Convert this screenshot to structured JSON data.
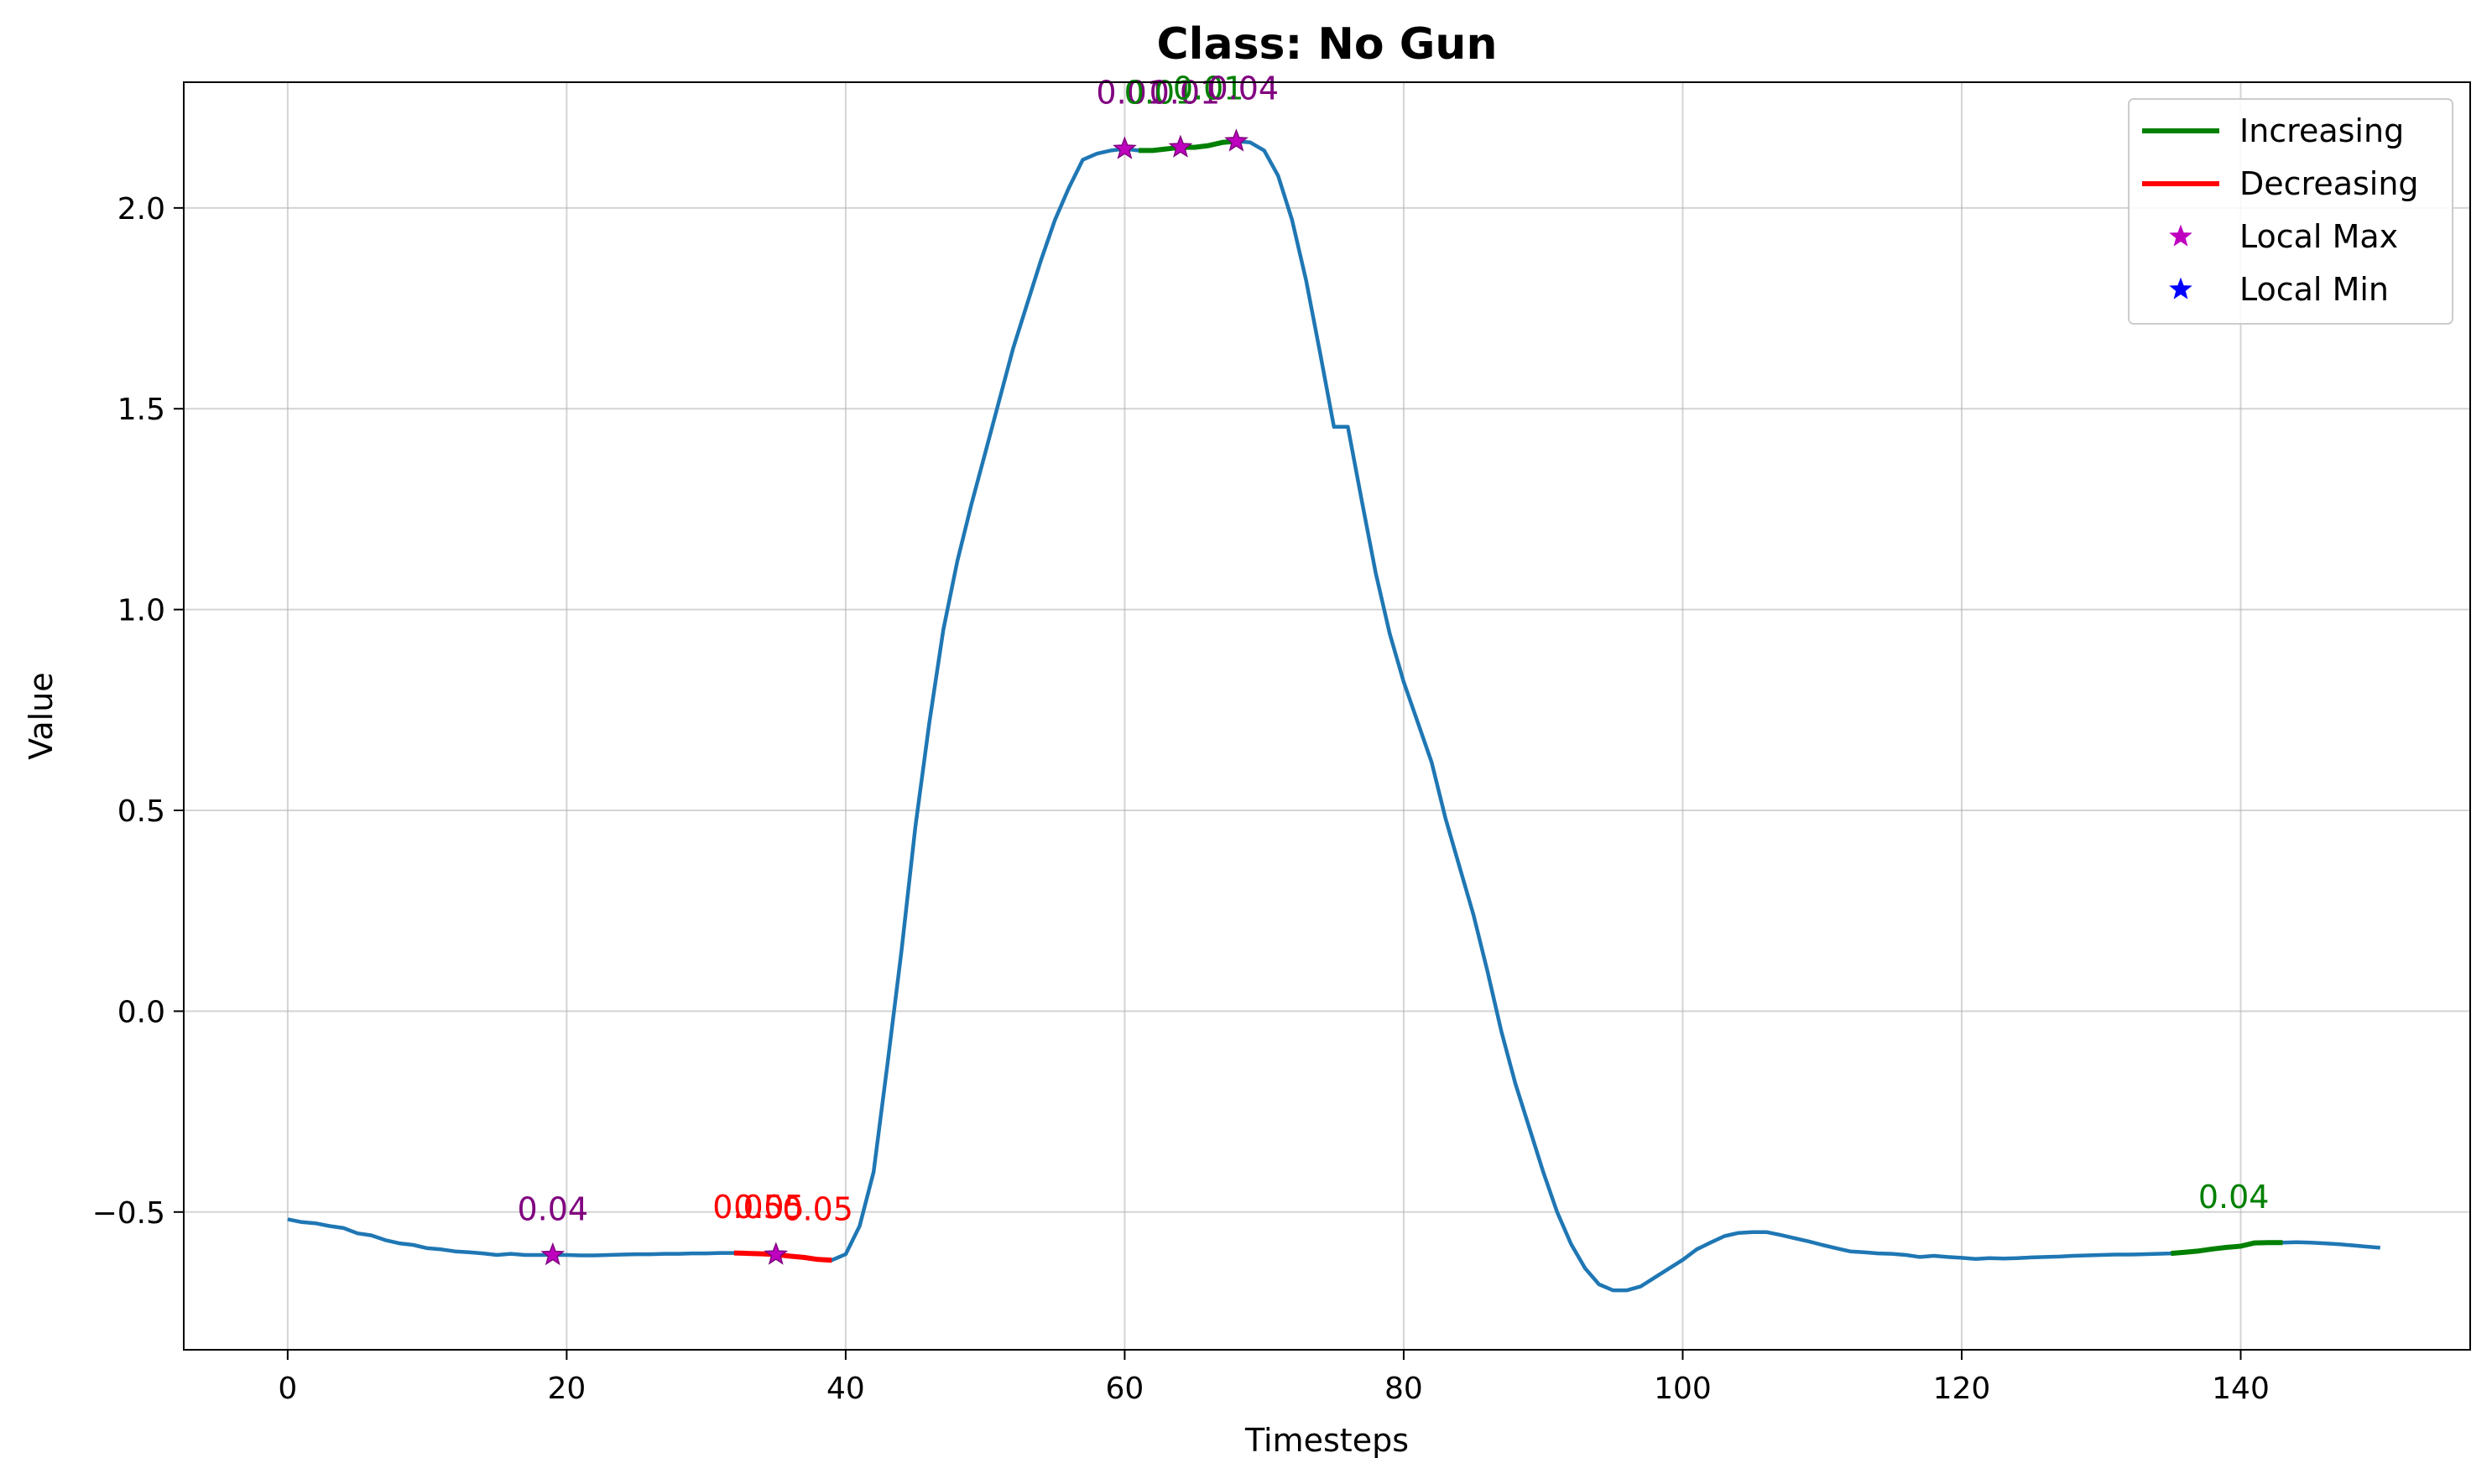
{
  "chart_data": {
    "type": "line",
    "title": "Class: No Gun",
    "xlabel": "Timesteps",
    "ylabel": "Value",
    "xlim": [
      -7.45,
      156.45
    ],
    "ylim": [
      -0.843,
      2.313
    ],
    "xticks": [
      0,
      20,
      40,
      60,
      80,
      100,
      120,
      140
    ],
    "xtick_labels": [
      "0",
      "20",
      "40",
      "60",
      "80",
      "100",
      "120",
      "140"
    ],
    "yticks": [
      -0.5,
      0.0,
      0.5,
      1.0,
      1.5,
      2.0
    ],
    "ytick_labels": [
      "−0.5",
      "0.0",
      "0.5",
      "1.0",
      "1.5",
      "2.0"
    ],
    "grid": true,
    "legend_position": "top-right",
    "colors": {
      "series": "#1f77b4",
      "increasing": "#008000",
      "decreasing": "#ff0000",
      "local_max": "#bf00bf",
      "local_min": "#0000ff",
      "annotation_max": "#800080"
    },
    "series": [
      {
        "values": [
          -0.518,
          -0.525,
          -0.528,
          -0.535,
          -0.54,
          -0.553,
          -0.558,
          -0.57,
          -0.578,
          -0.582,
          -0.59,
          -0.593,
          -0.598,
          -0.6,
          -0.603,
          -0.607,
          -0.604,
          -0.607,
          -0.607,
          -0.607,
          -0.607,
          -0.608,
          -0.608,
          -0.607,
          -0.606,
          -0.605,
          -0.605,
          -0.604,
          -0.604,
          -0.603,
          -0.603,
          -0.602,
          -0.602,
          -0.603,
          -0.604,
          -0.606,
          -0.61,
          -0.613,
          -0.618,
          -0.62,
          -0.605,
          -0.535,
          -0.4,
          -0.13,
          0.15,
          0.46,
          0.72,
          0.95,
          1.12,
          1.26,
          1.39,
          1.52,
          1.65,
          1.76,
          1.87,
          1.97,
          2.05,
          2.12,
          2.135,
          2.143,
          2.147,
          2.143,
          2.143,
          2.147,
          2.151,
          2.151,
          2.155,
          2.163,
          2.166,
          2.163,
          2.143,
          2.08,
          1.97,
          1.82,
          1.64,
          1.455,
          1.455,
          1.27,
          1.09,
          0.94,
          0.82,
          0.72,
          0.62,
          0.48,
          0.36,
          0.24,
          0.1,
          -0.05,
          -0.18,
          -0.29,
          -0.4,
          -0.5,
          -0.58,
          -0.64,
          -0.68,
          -0.695,
          -0.695,
          -0.685,
          -0.663,
          -0.641,
          -0.619,
          -0.593,
          -0.576,
          -0.56,
          -0.552,
          -0.55,
          -0.55,
          -0.557,
          -0.565,
          -0.573,
          -0.582,
          -0.59,
          -0.598,
          -0.6,
          -0.603,
          -0.604,
          -0.607,
          -0.612,
          -0.609,
          -0.612,
          -0.614,
          -0.617,
          -0.615,
          -0.616,
          -0.615,
          -0.613,
          -0.612,
          -0.611,
          -0.609,
          -0.608,
          -0.607,
          -0.606,
          -0.606,
          -0.605,
          -0.604,
          -0.603,
          -0.6,
          -0.597,
          -0.592,
          -0.588,
          -0.585,
          -0.577,
          -0.576,
          -0.576,
          -0.575,
          -0.576,
          -0.578,
          -0.58,
          -0.583,
          -0.586,
          -0.589
        ]
      }
    ],
    "trend_segments": [
      {
        "kind": "decreasing",
        "x_start": 32,
        "x_end": 39
      },
      {
        "kind": "increasing",
        "x_start": 61,
        "x_end": 68
      },
      {
        "kind": "increasing",
        "x_start": 135,
        "x_end": 143
      }
    ],
    "local_max": [
      {
        "x": 19,
        "y": -0.607
      },
      {
        "x": 35,
        "y": -0.606
      },
      {
        "x": 60,
        "y": 2.147
      },
      {
        "x": 64,
        "y": 2.151
      },
      {
        "x": 68,
        "y": 2.166
      }
    ],
    "annotations": [
      {
        "text": "0.04",
        "x": 19,
        "y": -0.52,
        "color": "#800080"
      },
      {
        "text": "0.05",
        "x": 33,
        "y": -0.515,
        "color": "#ff0000"
      },
      {
        "text": "0.05",
        "x": 34.5,
        "y": -0.515,
        "color": "#ff0000"
      },
      {
        "text": "0.05",
        "x": 38,
        "y": -0.52,
        "color": "#ff0000"
      },
      {
        "text": "0.01",
        "x": 60.5,
        "y": 2.26,
        "color": "#800080"
      },
      {
        "text": "0.01",
        "x": 62.5,
        "y": 2.26,
        "color": "#008000"
      },
      {
        "text": "0.01",
        "x": 64.3,
        "y": 2.26,
        "color": "#800080"
      },
      {
        "text": "0.01",
        "x": 66,
        "y": 2.27,
        "color": "#008000"
      },
      {
        "text": "0.04",
        "x": 68.5,
        "y": 2.27,
        "color": "#800080"
      },
      {
        "text": "0.04",
        "x": 139.5,
        "y": -0.49,
        "color": "#008000"
      }
    ],
    "legend": [
      {
        "label": "Increasing",
        "marker": "line",
        "color": "#008000"
      },
      {
        "label": "Decreasing",
        "marker": "line",
        "color": "#ff0000"
      },
      {
        "label": "Local Max",
        "marker": "star",
        "color": "#bf00bf"
      },
      {
        "label": "Local Min",
        "marker": "star",
        "color": "#0000ff"
      }
    ]
  }
}
